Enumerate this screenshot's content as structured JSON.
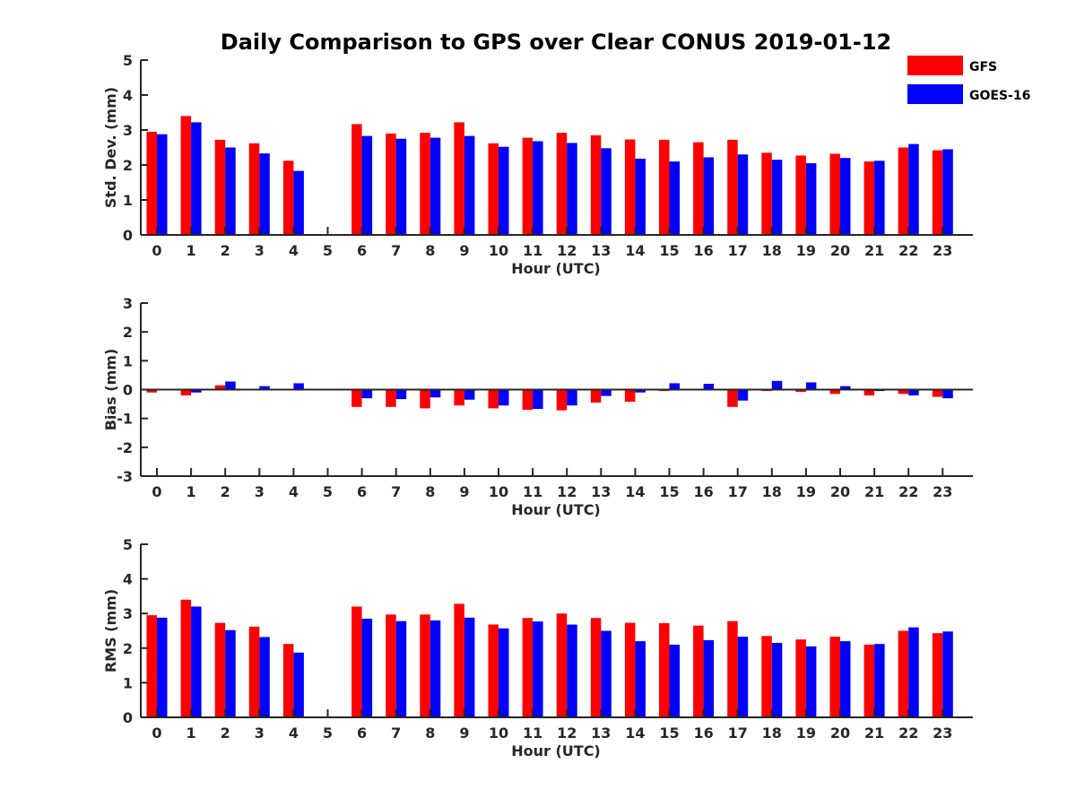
{
  "chart_data": [
    {
      "type": "bar",
      "title": "Daily Comparison to GPS over Clear CONUS 2019-01-12",
      "xlabel": "Hour (UTC)",
      "ylabel": "Std. Dev. (mm)",
      "ylim": [
        0,
        5
      ],
      "yticks": [
        "0",
        "1",
        "2",
        "3",
        "4",
        "5"
      ],
      "categories": [
        "0",
        "1",
        "2",
        "3",
        "4",
        "5",
        "6",
        "7",
        "8",
        "9",
        "10",
        "11",
        "12",
        "13",
        "14",
        "15",
        "16",
        "17",
        "18",
        "19",
        "20",
        "21",
        "22",
        "23"
      ],
      "series": [
        {
          "name": "GFS",
          "color": "#ff0000",
          "values": [
            2.95,
            3.4,
            2.72,
            2.62,
            2.12,
            null,
            3.17,
            2.9,
            2.92,
            3.22,
            2.62,
            2.78,
            2.92,
            2.85,
            2.73,
            2.72,
            2.65,
            2.72,
            2.35,
            2.27,
            2.32,
            2.1,
            2.5,
            2.42
          ]
        },
        {
          "name": "GOES-16",
          "color": "#0000ff",
          "values": [
            2.88,
            3.22,
            2.5,
            2.33,
            1.83,
            null,
            2.83,
            2.75,
            2.78,
            2.83,
            2.52,
            2.68,
            2.63,
            2.48,
            2.18,
            2.1,
            2.22,
            2.3,
            2.15,
            2.05,
            2.2,
            2.12,
            2.6,
            2.45
          ]
        }
      ]
    },
    {
      "type": "bar",
      "xlabel": "Hour (UTC)",
      "ylabel": "Bias (mm)",
      "ylim": [
        -3,
        3
      ],
      "yticks": [
        "-3",
        "-2",
        "-1",
        "0",
        "1",
        "2",
        "3"
      ],
      "categories": [
        "0",
        "1",
        "2",
        "3",
        "4",
        "5",
        "6",
        "7",
        "8",
        "9",
        "10",
        "11",
        "12",
        "13",
        "14",
        "15",
        "16",
        "17",
        "18",
        "19",
        "20",
        "21",
        "22",
        "23"
      ],
      "series": [
        {
          "name": "GFS",
          "color": "#ff0000",
          "values": [
            -0.1,
            -0.2,
            0.15,
            -0.03,
            0.0,
            null,
            -0.6,
            -0.6,
            -0.65,
            -0.55,
            -0.65,
            -0.7,
            -0.72,
            -0.45,
            -0.42,
            -0.05,
            0.0,
            -0.6,
            -0.05,
            -0.08,
            -0.15,
            -0.2,
            -0.15,
            -0.25
          ]
        },
        {
          "name": "GOES-16",
          "color": "#0000ff",
          "values": [
            0.0,
            -0.1,
            0.28,
            0.12,
            0.22,
            null,
            -0.3,
            -0.33,
            -0.27,
            -0.35,
            -0.55,
            -0.67,
            -0.55,
            -0.22,
            -0.1,
            0.22,
            0.2,
            -0.38,
            0.3,
            0.25,
            0.12,
            -0.05,
            -0.2,
            -0.3
          ]
        }
      ]
    },
    {
      "type": "bar",
      "xlabel": "Hour (UTC)",
      "ylabel": "RMS (mm)",
      "ylim": [
        0,
        5
      ],
      "yticks": [
        "0",
        "1",
        "2",
        "3",
        "4",
        "5"
      ],
      "categories": [
        "0",
        "1",
        "2",
        "3",
        "4",
        "5",
        "6",
        "7",
        "8",
        "9",
        "10",
        "11",
        "12",
        "13",
        "14",
        "15",
        "16",
        "17",
        "18",
        "19",
        "20",
        "21",
        "22",
        "23"
      ],
      "series": [
        {
          "name": "GFS",
          "color": "#ff0000",
          "values": [
            2.95,
            3.4,
            2.73,
            2.62,
            2.12,
            null,
            3.2,
            2.97,
            2.97,
            3.28,
            2.68,
            2.87,
            3.0,
            2.87,
            2.73,
            2.72,
            2.65,
            2.78,
            2.35,
            2.25,
            2.33,
            2.1,
            2.5,
            2.43
          ]
        },
        {
          "name": "GOES-16",
          "color": "#0000ff",
          "values": [
            2.88,
            3.2,
            2.52,
            2.32,
            1.87,
            null,
            2.85,
            2.78,
            2.8,
            2.88,
            2.57,
            2.77,
            2.68,
            2.5,
            2.2,
            2.1,
            2.23,
            2.33,
            2.15,
            2.05,
            2.2,
            2.12,
            2.6,
            2.48
          ]
        }
      ]
    }
  ],
  "legend": [
    {
      "label": "GFS",
      "color": "#ff0000"
    },
    {
      "label": "GOES-16",
      "color": "#0000ff"
    }
  ]
}
